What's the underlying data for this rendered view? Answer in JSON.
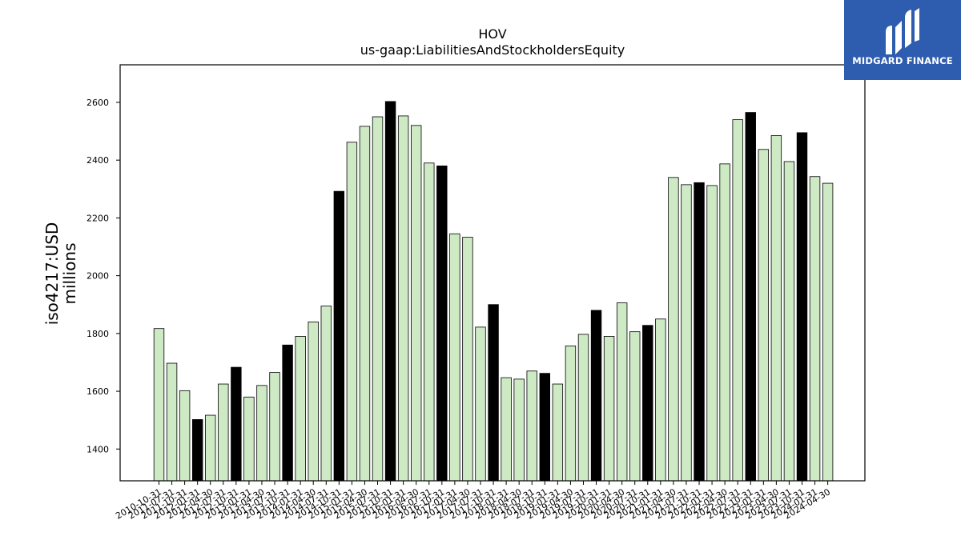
{
  "logo": {
    "text": "MIDGARD FINANCE",
    "icon": "midgard-logo-icon",
    "background": "#2e5caf"
  },
  "chart_data": {
    "type": "bar",
    "title": "HOV",
    "subtitle": "us-gaap:LiabilitiesAndStockholdersEquity",
    "ylabel_line1": "iso4217:USD",
    "ylabel_line2": "millions",
    "xlabel": "",
    "ylim": [
      1290,
      2730
    ],
    "yticks": [
      1400,
      1600,
      1800,
      2000,
      2200,
      2400,
      2600
    ],
    "grid": false,
    "colors": {
      "normal": "#cdeac5",
      "highlight": "#000000",
      "edge": "#000000"
    },
    "categories": [
      "2010-10-31",
      "2011-07-31",
      "2011-10-31",
      "2012-01-31",
      "2012-04-30",
      "2012-07-31",
      "2012-10-31",
      "2013-01-31",
      "2013-04-30",
      "2013-07-31",
      "2013-10-31",
      "2014-01-31",
      "2014-04-30",
      "2014-07-31",
      "2014-10-31",
      "2015-01-31",
      "2015-04-30",
      "2015-07-31",
      "2015-10-31",
      "2016-01-31",
      "2016-04-30",
      "2016-07-31",
      "2016-10-31",
      "2017-01-31",
      "2017-04-30",
      "2017-07-31",
      "2017-10-31",
      "2018-01-31",
      "2018-04-30",
      "2018-07-31",
      "2018-10-31",
      "2019-01-31",
      "2019-04-30",
      "2019-07-31",
      "2019-10-31",
      "2020-01-31",
      "2020-04-30",
      "2020-07-31",
      "2020-10-31",
      "2021-01-31",
      "2021-04-30",
      "2021-07-31",
      "2021-10-31",
      "2022-01-31",
      "2022-04-30",
      "2022-07-31",
      "2022-10-31",
      "2023-01-31",
      "2023-04-30",
      "2023-07-31",
      "2023-10-31",
      "2024-01-31",
      "2024-04-30"
    ],
    "values": [
      1817,
      1697,
      1602,
      1502,
      1517,
      1625,
      1683,
      1580,
      1620,
      1665,
      1760,
      1790,
      1840,
      1895,
      2292,
      2462,
      2517,
      2550,
      2603,
      2553,
      2520,
      2390,
      2380,
      2145,
      2133,
      1822,
      1900,
      1647,
      1642,
      1670,
      1662,
      1625,
      1757,
      1797,
      1880,
      1790,
      1906,
      1806,
      1828,
      1850,
      2340,
      2315,
      2322,
      2312,
      2387,
      2540,
      2565,
      2437,
      2485,
      2395,
      2495,
      2343,
      2320
    ],
    "highlight": [
      false,
      false,
      false,
      true,
      false,
      false,
      true,
      false,
      false,
      false,
      true,
      false,
      false,
      false,
      true,
      false,
      false,
      false,
      true,
      false,
      false,
      false,
      true,
      false,
      false,
      false,
      true,
      false,
      false,
      false,
      true,
      false,
      false,
      false,
      true,
      false,
      false,
      false,
      true,
      false,
      false,
      false,
      true,
      false,
      false,
      false,
      true,
      false,
      false,
      false,
      true,
      false,
      false
    ]
  }
}
